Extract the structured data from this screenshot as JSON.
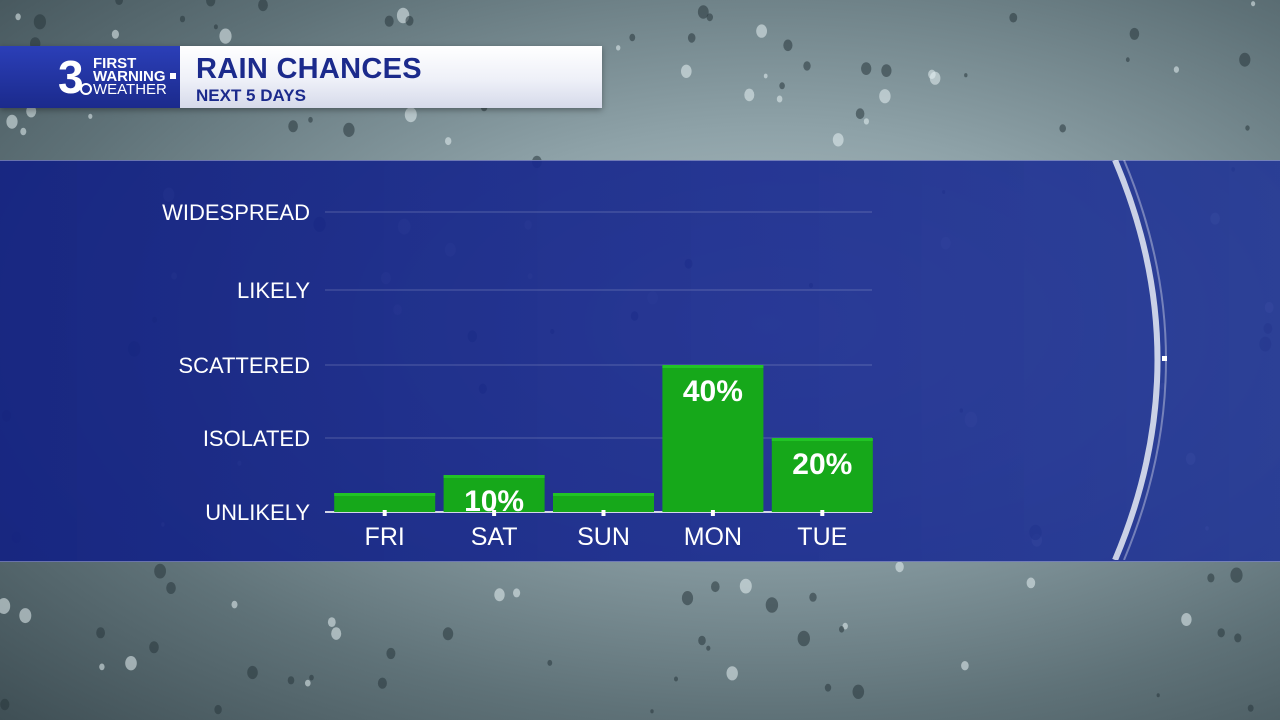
{
  "header": {
    "logo": {
      "number": "3",
      "line1": "FIRST",
      "line2": "WARNING",
      "line3": "WEATHER"
    },
    "title": "RAIN CHANCES",
    "subtitle": "NEXT 5 DAYS"
  },
  "colors": {
    "bar_fill": "#16a81a",
    "bar_top": "#21c425",
    "panel": "#1c2d91",
    "header_text": "#1b2a8c"
  },
  "chart_data": {
    "type": "bar",
    "title": "RAIN CHANCES",
    "subtitle": "NEXT 5 DAYS",
    "categories": [
      "FRI",
      "SAT",
      "SUN",
      "MON",
      "TUE"
    ],
    "values": [
      0,
      10,
      0,
      40,
      20
    ],
    "value_labels": [
      "",
      "10%",
      "",
      "40%",
      "20%"
    ],
    "y_levels": [
      "UNLIKELY",
      "ISOLATED",
      "SCATTERED",
      "LIKELY",
      "WIDESPREAD"
    ],
    "grid": true,
    "legend": "none"
  }
}
